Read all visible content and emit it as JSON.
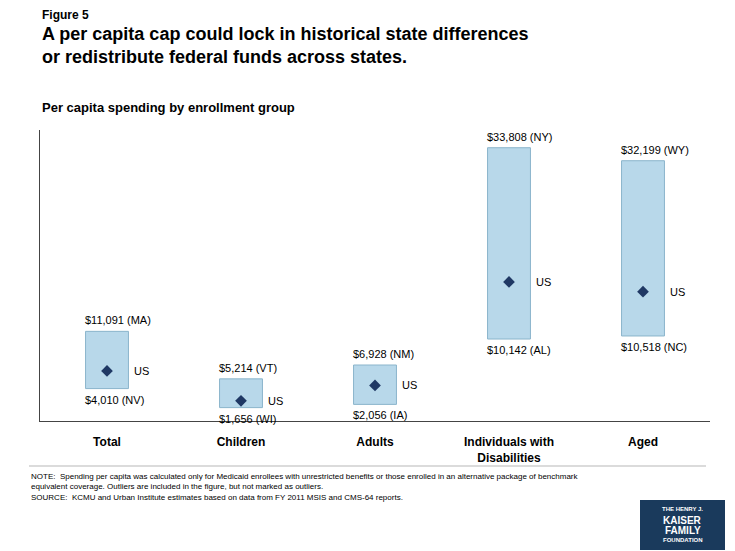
{
  "chart_data": {
    "type": "bar",
    "figure_label": "Figure 5",
    "title": "A per capita cap could lock in historical state differences\nor redistribute federal funds across states.",
    "subtitle": "Per capita spending by enrollment group",
    "categories": [
      "Total",
      "Children",
      "Adults",
      "Individuals with\nDisabilities",
      "Aged"
    ],
    "low": {
      "values": [
        4010,
        1656,
        2056,
        10142,
        10518
      ],
      "value_labels": [
        "$4,010 (NV)",
        "$1,656 (WI)",
        "$2,056 (IA)",
        "$10,142 (AL)",
        "$10,518 (NC)"
      ]
    },
    "high": {
      "values": [
        11091,
        5214,
        6928,
        33808,
        32199
      ],
      "value_labels": [
        "$11,091 (MA)",
        "$5,214 (VT)",
        "$6,928 (NM)",
        "$33,808 (NY)",
        "$32,199 (WY)"
      ]
    },
    "us": {
      "values": [
        6200,
        2500,
        4400,
        17200,
        16000
      ],
      "label": "US",
      "marker": "diamond",
      "color": "#1f3864"
    },
    "color": "#b8d8ea",
    "edge_color": "#8ab4cb",
    "ylim": [
      0,
      36000
    ],
    "yticks": [],
    "tick_labels": "x",
    "grid": false,
    "note": "NOTE:  Spending per capita was calculated only for Medicaid enrollees with unrestricted benefits or those enrolled in an alternative package of benchmark\nequivalent coverage. Outliers are included in the figure, but not marked as outliers.\nSOURCE:  KCMU and Urban Institute estimates based on data from FY 2011 MSIS and CMS-64 reports.",
    "logo": {
      "texts": [
        "THE HENRY J.",
        "KAISER",
        "FAMILY",
        "FOUNDATION"
      ],
      "color": "#1a3a5c"
    }
  }
}
